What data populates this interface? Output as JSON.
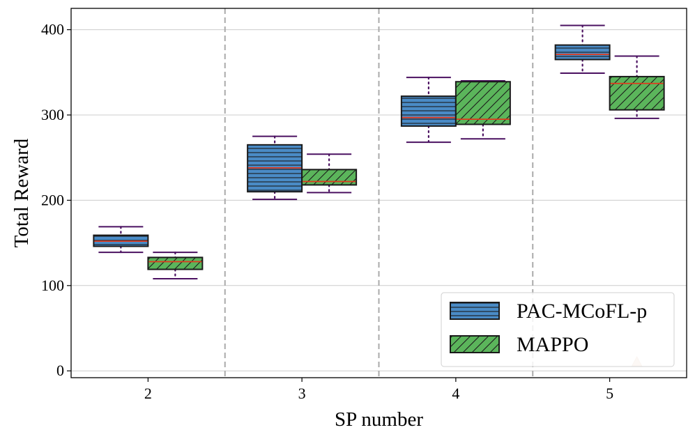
{
  "chart_data": {
    "type": "box",
    "title": "",
    "xlabel": "SP number",
    "ylabel": "Total Reward",
    "categories": [
      "2",
      "3",
      "4",
      "5"
    ],
    "ylim": [
      -8,
      425
    ],
    "yticks": [
      0,
      100,
      200,
      300,
      400
    ],
    "grid": "horizontal",
    "category_separators": true,
    "legend_position": "lower-right",
    "series": [
      {
        "name": "PAC-MCoFL-p",
        "color": "#4a8bc6",
        "hatch": "horizontal-lines",
        "boxes": [
          {
            "min": 139,
            "q1": 146,
            "median": 152,
            "q3": 159,
            "max": 169
          },
          {
            "min": 201,
            "q1": 210,
            "median": 238,
            "q3": 265,
            "max": 275
          },
          {
            "min": 268,
            "q1": 287,
            "median": 297,
            "q3": 322,
            "max": 344
          },
          {
            "min": 349,
            "q1": 365,
            "median": 371,
            "q3": 382,
            "max": 405
          }
        ]
      },
      {
        "name": "MAPPO",
        "color": "#5bb55b",
        "hatch": "diagonal-lines",
        "boxes": [
          {
            "min": 108,
            "q1": 119,
            "median": 128,
            "q3": 133,
            "max": 139
          },
          {
            "min": 209,
            "q1": 218,
            "median": 222,
            "q3": 236,
            "max": 254
          },
          {
            "min": 272,
            "q1": 289,
            "median": 295,
            "q3": 339,
            "max": 340
          },
          {
            "min": 296,
            "q1": 306,
            "median": 337,
            "q3": 345,
            "max": 369
          }
        ]
      }
    ],
    "outliers": [
      {
        "series": "MAPPO",
        "category": "5",
        "value": 10,
        "marker": "triangle"
      }
    ],
    "colors": {
      "box_edge": "#1a1a1a",
      "median_line": "#e03a1e",
      "whisker": "#4a1060",
      "grid": "#cccccc",
      "separator": "#aaaaaa",
      "outlier": "#ecd0bc"
    }
  }
}
